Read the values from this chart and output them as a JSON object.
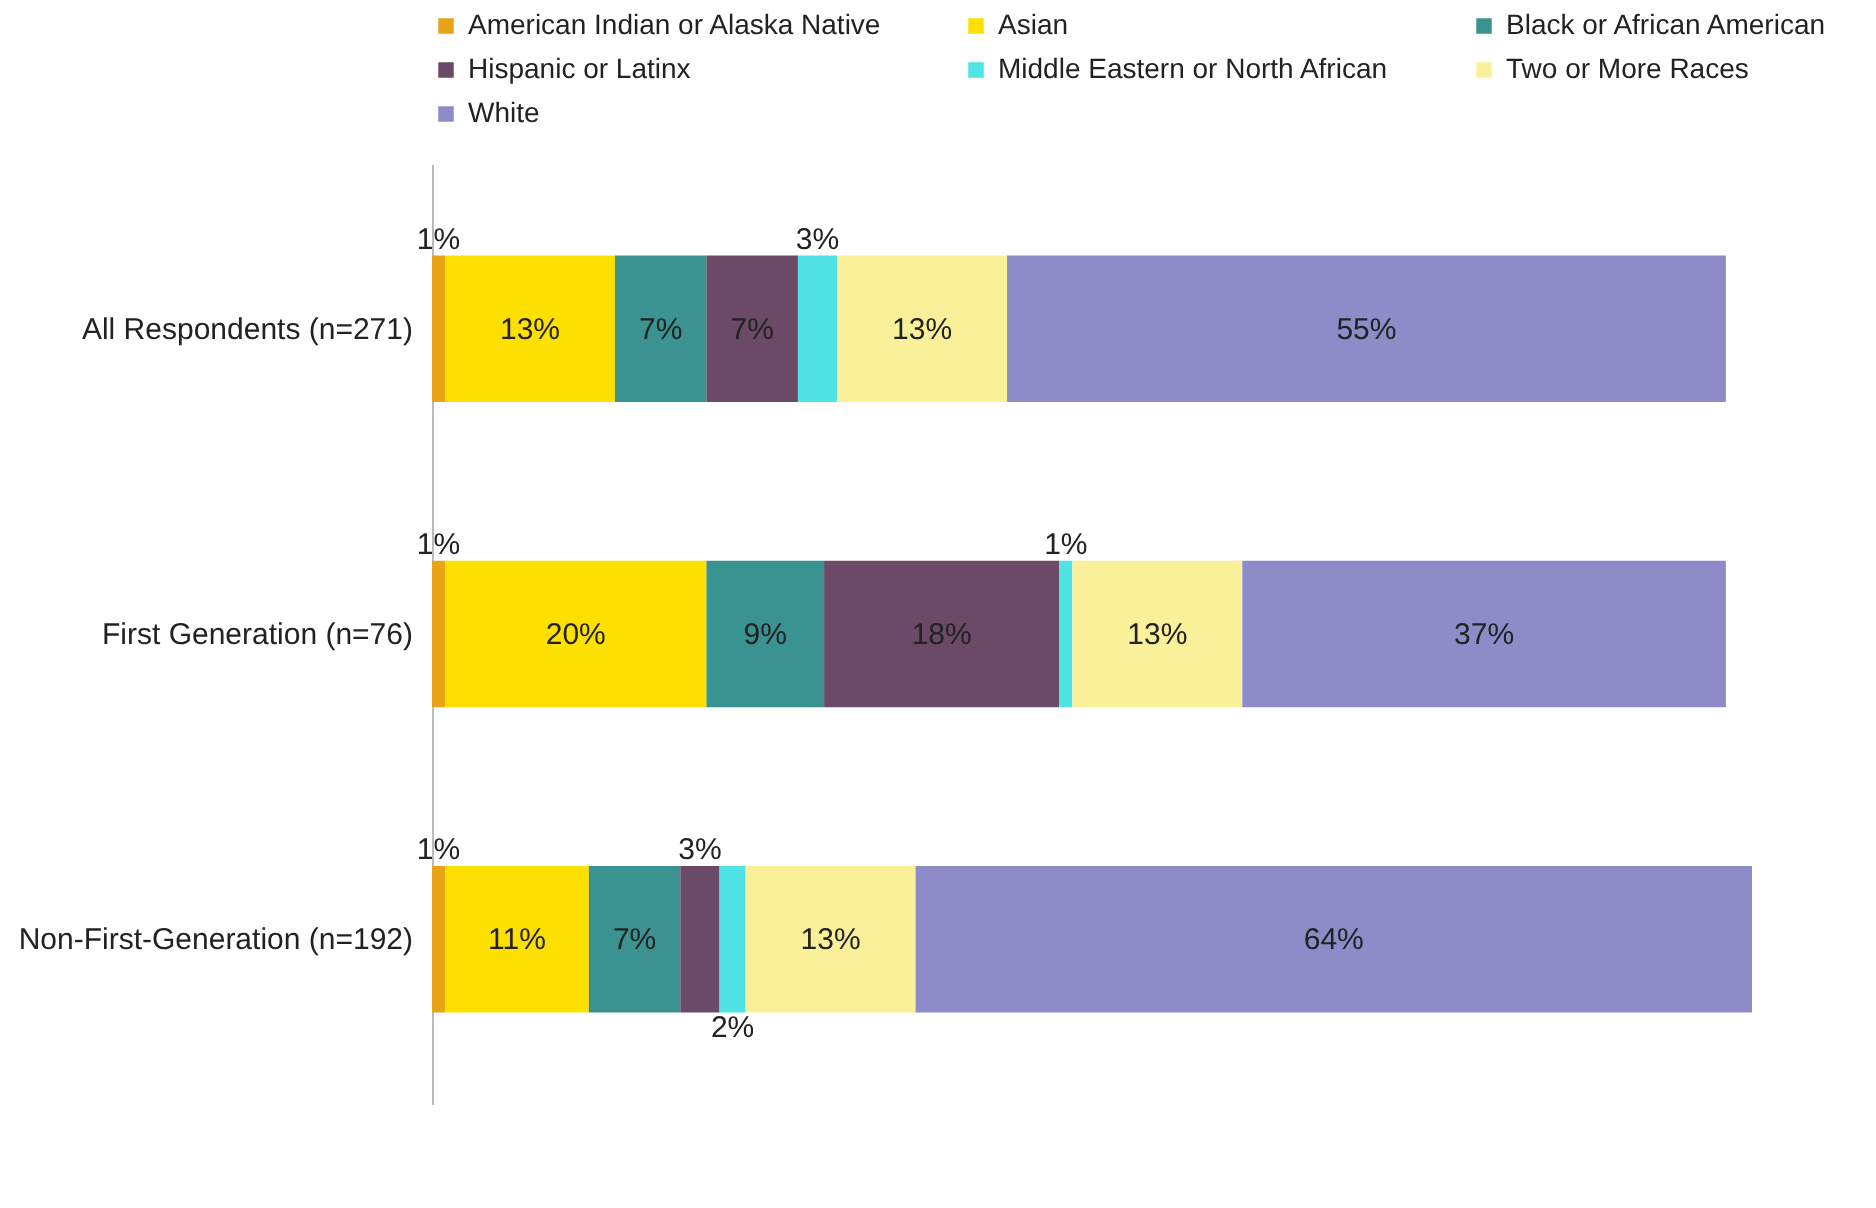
{
  "chart_data": {
    "type": "bar",
    "orientation": "horizontal",
    "stacked": true,
    "legend": "top",
    "grid": false,
    "tick_labels": "y",
    "categories": [
      "All Respondents (n=271)",
      "First Generation (n=76)",
      "Non-First-Generation (n=192)"
    ],
    "series": [
      {
        "name": "American Indian or Alaska Native",
        "color": "#e8a317",
        "values": [
          1,
          1,
          1
        ],
        "value_labels": [
          "1%",
          "1%",
          "1%"
        ]
      },
      {
        "name": "Asian",
        "color": "#fde000",
        "values": [
          13,
          20,
          11
        ],
        "value_labels": [
          "13%",
          "20%",
          "11%"
        ]
      },
      {
        "name": "Black or African American",
        "color": "#3a9390",
        "values": [
          7,
          9,
          7
        ],
        "value_labels": [
          "7%",
          "9%",
          "7%"
        ]
      },
      {
        "name": "Hispanic or Latinx",
        "color": "#6b4a67",
        "values": [
          7,
          18,
          3
        ],
        "value_labels": [
          "7%",
          "18%",
          "3%"
        ]
      },
      {
        "name": "Middle Eastern or North African",
        "color": "#4fe3e6",
        "values": [
          3,
          1,
          2
        ],
        "value_labels": [
          "3%",
          "1%",
          "2%"
        ]
      },
      {
        "name": "Two or More Races",
        "color": "#fbf09a",
        "values": [
          13,
          13,
          13
        ],
        "value_labels": [
          "13%",
          "13%",
          "13%"
        ]
      },
      {
        "name": "White",
        "color": "#8d8cc8",
        "values": [
          55,
          37,
          64
        ],
        "value_labels": [
          "55%",
          "37%",
          "64%"
        ]
      }
    ]
  }
}
